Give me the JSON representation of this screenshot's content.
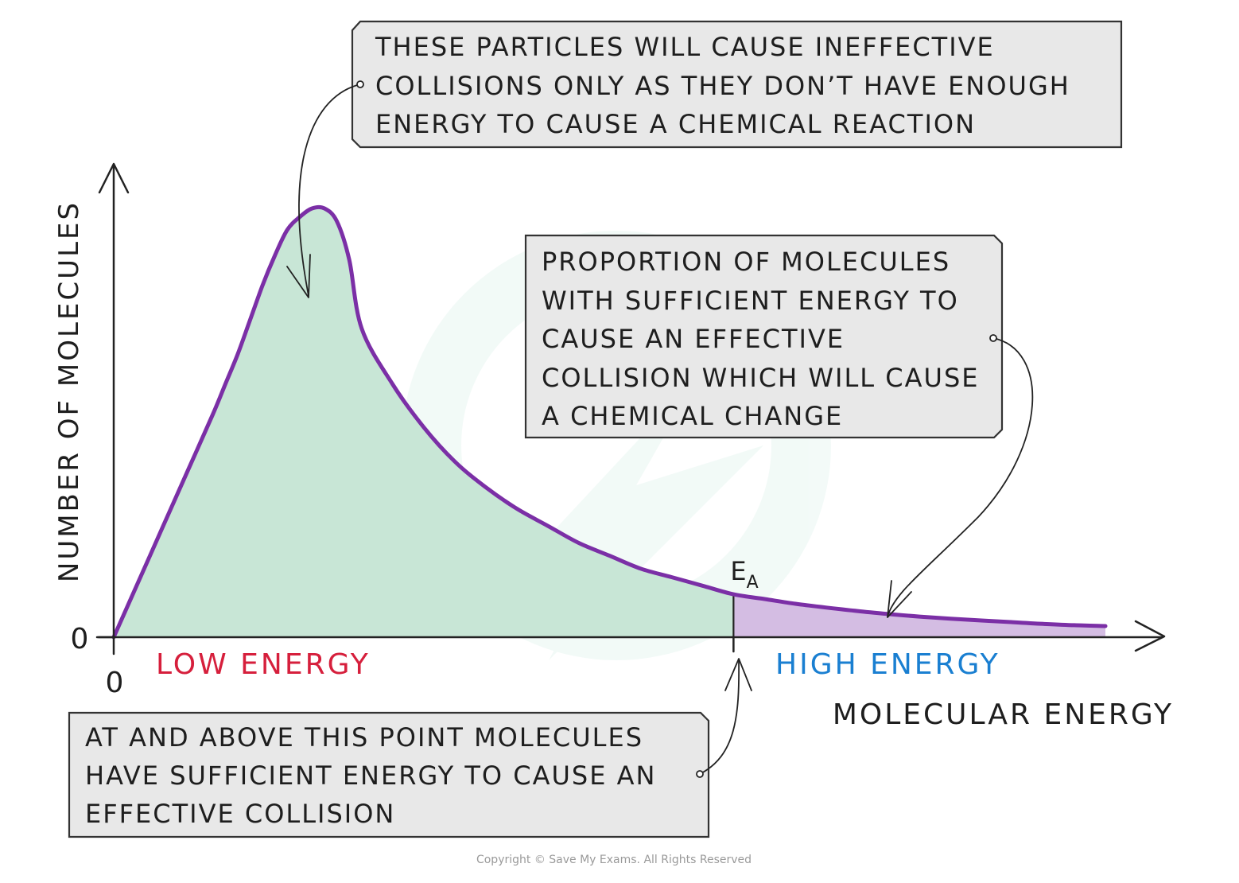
{
  "chart_data": {
    "type": "area",
    "title": "",
    "ylabel": "NUMBER OF MOLECULES",
    "xlabel": "MOLECULAR ENERGY",
    "x_origin_label": "0",
    "y_origin_label": "0",
    "x": [
      0,
      0.04,
      0.08,
      0.12,
      0.16,
      0.18,
      0.2,
      0.22,
      0.24,
      0.26,
      0.28,
      0.3,
      0.32,
      0.34,
      0.36,
      0.38,
      0.4,
      0.45,
      0.5,
      0.55,
      0.6,
      0.65,
      0.7,
      0.75,
      0.8,
      0.85,
      0.9,
      0.95,
      1.0,
      1.05,
      1.1,
      1.15,
      1.2,
      1.25,
      1.3,
      1.35,
      1.4,
      1.45,
      1.5,
      1.55,
      1.6
    ],
    "series": [
      {
        "values": [
          0,
          0.13,
          0.26,
          0.39,
          0.52,
          0.59,
          0.66,
          0.74,
          0.82,
          0.89,
          0.95,
          0.98,
          1.0,
          1.0,
          0.97,
          0.88,
          0.72,
          0.59,
          0.49,
          0.41,
          0.35,
          0.3,
          0.26,
          0.22,
          0.19,
          0.16,
          0.14,
          0.12,
          0.1,
          0.089,
          0.078,
          0.069,
          0.061,
          0.054,
          0.048,
          0.043,
          0.039,
          0.035,
          0.031,
          0.028,
          0.026
        ]
      }
    ],
    "activation_energy": {
      "label_main": "E",
      "label_sub": "A",
      "x": 1.0
    },
    "regions": {
      "low": {
        "label": "LOW ENERGY",
        "color": "#c8e6d6"
      },
      "high": {
        "label": "HIGH ENERGY",
        "color": "#d4bde3"
      }
    },
    "curve_color": "#7b2fa6",
    "low_label_color": "#d61f3c",
    "high_label_color": "#1a7fd1",
    "xlim": [
      0,
      1.6
    ],
    "ylim": [
      0,
      1.0
    ],
    "grid": false,
    "legend": "none"
  },
  "callouts": {
    "top": {
      "lines": [
        "THESE PARTICLES WILL CAUSE INEFFECTIVE",
        "COLLISIONS ONLY AS THEY DON’T HAVE ENOUGH",
        "ENERGY TO CAUSE A CHEMICAL REACTION"
      ]
    },
    "right": {
      "lines": [
        "PROPORTION OF MOLECULES",
        "WITH SUFFICIENT ENERGY TO",
        "CAUSE AN EFFECTIVE",
        "COLLISION WHICH WILL CAUSE",
        "A CHEMICAL CHANGE"
      ]
    },
    "bottom": {
      "lines": [
        "AT AND ABOVE THIS POINT MOLECULES",
        "HAVE SUFFICIENT ENERGY TO CAUSE AN",
        "EFFECTIVE COLLISION"
      ]
    }
  },
  "copyright": "Copyright © Save My Exams. All Rights Reserved"
}
